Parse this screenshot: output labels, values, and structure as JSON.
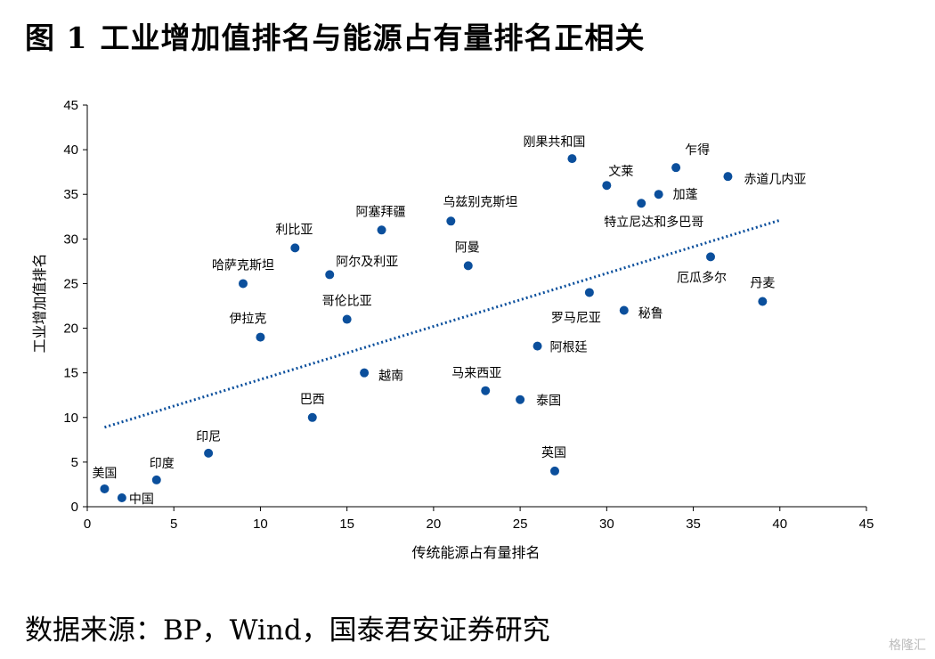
{
  "header": {
    "figure_number": "图 1",
    "title": "工业增加值排名与能源占有量排名正相关"
  },
  "footer": {
    "source": "数据来源：BP，Wind，国泰君安证券研究",
    "watermark": "格隆汇"
  },
  "chart_data": {
    "type": "scatter",
    "title": "工业增加值排名与能源占有量排名正相关",
    "xlabel": "传统能源占有量排名",
    "ylabel": "工业增加值排名",
    "xlim": [
      0,
      45
    ],
    "ylim": [
      0,
      45
    ],
    "xticks": [
      0,
      5,
      10,
      15,
      20,
      25,
      30,
      35,
      40,
      45
    ],
    "yticks": [
      0,
      5,
      10,
      15,
      20,
      25,
      30,
      35,
      40,
      45
    ],
    "grid": false,
    "marker_color": "#0b4f9c",
    "trendline": {
      "style": "dotted",
      "color": "#0b4f9c",
      "from": [
        1,
        8.9
      ],
      "to": [
        40,
        32.1
      ]
    },
    "points": [
      {
        "label": "美国",
        "x": 1,
        "y": 2
      },
      {
        "label": "中国",
        "x": 2,
        "y": 1
      },
      {
        "label": "印度",
        "x": 4,
        "y": 3
      },
      {
        "label": "印尼",
        "x": 7,
        "y": 6
      },
      {
        "label": "哈萨克斯坦",
        "x": 9,
        "y": 25
      },
      {
        "label": "伊拉克",
        "x": 10,
        "y": 19
      },
      {
        "label": "利比亚",
        "x": 12,
        "y": 29
      },
      {
        "label": "巴西",
        "x": 13,
        "y": 10
      },
      {
        "label": "阿尔及利亚",
        "x": 14,
        "y": 26
      },
      {
        "label": "哥伦比亚",
        "x": 15,
        "y": 21
      },
      {
        "label": "越南",
        "x": 16,
        "y": 15
      },
      {
        "label": "阿塞拜疆",
        "x": 17,
        "y": 31
      },
      {
        "label": "乌兹别克斯坦",
        "x": 21,
        "y": 32
      },
      {
        "label": "阿曼",
        "x": 22,
        "y": 27
      },
      {
        "label": "马来西亚",
        "x": 23,
        "y": 13
      },
      {
        "label": "泰国",
        "x": 25,
        "y": 12
      },
      {
        "label": "阿根廷",
        "x": 26,
        "y": 18
      },
      {
        "label": "英国",
        "x": 27,
        "y": 4
      },
      {
        "label": "刚果共和国",
        "x": 28,
        "y": 39
      },
      {
        "label": "罗马尼亚",
        "x": 29,
        "y": 24
      },
      {
        "label": "文莱",
        "x": 30,
        "y": 36
      },
      {
        "label": "秘鲁",
        "x": 31,
        "y": 22
      },
      {
        "label": "特立尼达和多巴哥",
        "x": 32,
        "y": 34
      },
      {
        "label": "加蓬",
        "x": 33,
        "y": 35
      },
      {
        "label": "乍得",
        "x": 34,
        "y": 38
      },
      {
        "label": "厄瓜多尔",
        "x": 36,
        "y": 28
      },
      {
        "label": "赤道几内亚",
        "x": 37,
        "y": 37
      },
      {
        "label": "丹麦",
        "x": 39,
        "y": 23
      }
    ]
  }
}
